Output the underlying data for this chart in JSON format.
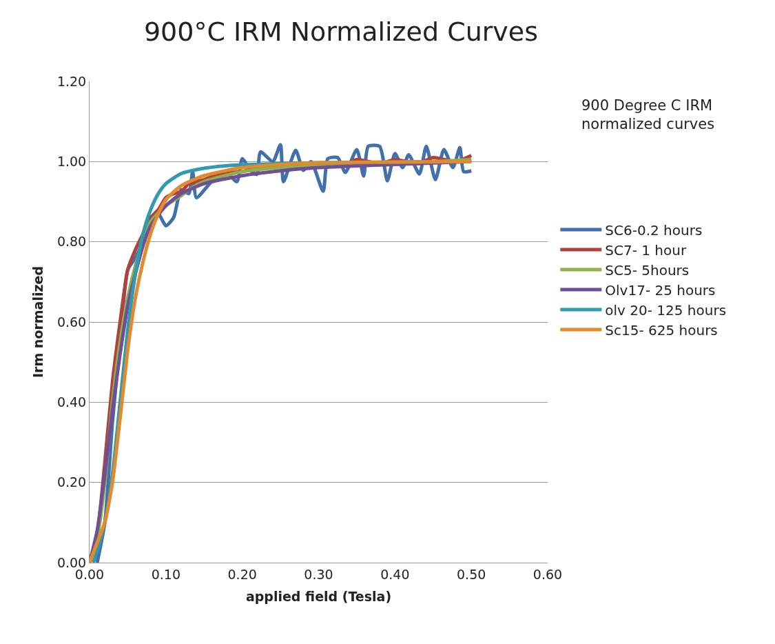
{
  "chart_data": {
    "type": "line",
    "title": "900°C IRM Normalized Curves",
    "xlabel": "applied field (Tesla)",
    "ylabel": "Irm normalized",
    "annotations": [
      "900 Degree C IRM normalized curves"
    ],
    "xlim": [
      0,
      0.6
    ],
    "xticks": [
      {
        "value": 0,
        "label": "0.00"
      },
      {
        "value": 0.1,
        "label": "0.10"
      },
      {
        "value": 0.2,
        "label": "0.20"
      },
      {
        "value": 0.3,
        "label": "0.30"
      },
      {
        "value": 0.4,
        "label": "0.40"
      },
      {
        "value": 0.5,
        "label": "0.50"
      },
      {
        "value": 0.6,
        "label": "0.60"
      }
    ],
    "ylim": [
      0,
      1.2
    ],
    "yticks": [
      {
        "value": 0,
        "label": "0.00"
      },
      {
        "value": 0.2,
        "label": "0.20"
      },
      {
        "value": 0.4,
        "label": "0.40"
      },
      {
        "value": 0.6,
        "label": "0.60"
      },
      {
        "value": 0.8,
        "label": "0.80"
      },
      {
        "value": 1.0,
        "label": "1.00"
      },
      {
        "value": 1.2,
        "label": "1.20"
      }
    ],
    "grid": "y",
    "legend": "right",
    "marker": "none",
    "line_style": "solid",
    "series": [
      {
        "name": "SC6-0.2 hours",
        "color": "#4170aa",
        "x": [
          0.01,
          0.02,
          0.03,
          0.04,
          0.05,
          0.06,
          0.07,
          0.08,
          0.09,
          0.1,
          0.11,
          0.12,
          0.13,
          0.135,
          0.14,
          0.16,
          0.18,
          0.193,
          0.2,
          0.21,
          0.219,
          0.224,
          0.24,
          0.25,
          0.254,
          0.27,
          0.28,
          0.29,
          0.306,
          0.312,
          0.325,
          0.335,
          0.35,
          0.359,
          0.365,
          0.38,
          0.39,
          0.4,
          0.41,
          0.418,
          0.432,
          0.441,
          0.453,
          0.464,
          0.476,
          0.485,
          0.49,
          0.5
        ],
        "values": [
          0,
          0.1,
          0.35,
          0.55,
          0.73,
          0.76,
          0.8,
          0.86,
          0.87,
          0.84,
          0.86,
          0.93,
          0.92,
          0.975,
          0.91,
          0.95,
          0.97,
          0.95,
          1.007,
          0.98,
          0.968,
          1.024,
          1.0,
          1.042,
          0.95,
          1.028,
          0.978,
          1.0,
          0.926,
          1.007,
          1.01,
          0.973,
          1.03,
          0.964,
          1.038,
          1.038,
          0.952,
          1.02,
          0.985,
          1.017,
          0.969,
          1.038,
          0.955,
          1.03,
          0.985,
          1.035,
          0.975,
          0.977
        ]
      },
      {
        "name": "SC7- 1 hour",
        "color": "#b0413e",
        "x": [
          0,
          0.01,
          0.02,
          0.03,
          0.04,
          0.05,
          0.06,
          0.07,
          0.08,
          0.09,
          0.1,
          0.11,
          0.12,
          0.13,
          0.15,
          0.17,
          0.2,
          0.22,
          0.25,
          0.3,
          0.33,
          0.35,
          0.38,
          0.4,
          0.43,
          0.45,
          0.48,
          0.5
        ],
        "values": [
          0,
          0.07,
          0.25,
          0.45,
          0.6,
          0.73,
          0.78,
          0.82,
          0.86,
          0.88,
          0.91,
          0.92,
          0.925,
          0.945,
          0.955,
          0.97,
          0.975,
          0.985,
          0.99,
          0.995,
          0.99,
          1.005,
          0.995,
          1.005,
          0.995,
          1.01,
          1.0,
          1.015
        ]
      },
      {
        "name": "SC5- 5hours",
        "color": "#8fb04a",
        "x": [
          0,
          0.01,
          0.02,
          0.03,
          0.04,
          0.05,
          0.06,
          0.07,
          0.08,
          0.1,
          0.12,
          0.13,
          0.15,
          0.2,
          0.25,
          0.3,
          0.35,
          0.4,
          0.45,
          0.5
        ],
        "values": [
          0,
          0.06,
          0.2,
          0.4,
          0.55,
          0.66,
          0.74,
          0.8,
          0.85,
          0.89,
          0.915,
          0.93,
          0.95,
          0.975,
          0.985,
          0.99,
          0.995,
          0.998,
          1.0,
          1.005
        ]
      },
      {
        "name": "Olv17- 25 hours",
        "color": "#6f4f96",
        "x": [
          0,
          0.01,
          0.02,
          0.03,
          0.04,
          0.05,
          0.06,
          0.07,
          0.08,
          0.1,
          0.12,
          0.15,
          0.2,
          0.25,
          0.3,
          0.4,
          0.5
        ],
        "values": [
          0,
          0.08,
          0.22,
          0.38,
          0.52,
          0.64,
          0.72,
          0.79,
          0.84,
          0.89,
          0.92,
          0.945,
          0.965,
          0.977,
          0.985,
          0.993,
          1.0
        ]
      },
      {
        "name": "olv 20- 125 hours",
        "color": "#2f9ab0",
        "x": [
          0.005,
          0.01,
          0.02,
          0.03,
          0.04,
          0.05,
          0.06,
          0.07,
          0.08,
          0.09,
          0.1,
          0.12,
          0.14,
          0.17,
          0.2,
          0.3,
          0.5
        ],
        "values": [
          0,
          0.03,
          0.1,
          0.22,
          0.4,
          0.58,
          0.72,
          0.82,
          0.88,
          0.92,
          0.945,
          0.97,
          0.98,
          0.988,
          0.992,
          0.997,
          1.0
        ]
      },
      {
        "name": "Sc15- 625 hours",
        "color": "#e28a2e",
        "x": [
          0,
          0.01,
          0.02,
          0.03,
          0.04,
          0.05,
          0.06,
          0.07,
          0.08,
          0.09,
          0.1,
          0.12,
          0.15,
          0.2,
          0.25,
          0.3,
          0.4,
          0.5
        ],
        "values": [
          0,
          0.05,
          0.1,
          0.2,
          0.36,
          0.53,
          0.66,
          0.75,
          0.82,
          0.87,
          0.905,
          0.94,
          0.965,
          0.985,
          0.993,
          0.997,
          0.999,
          1.0
        ]
      }
    ]
  }
}
